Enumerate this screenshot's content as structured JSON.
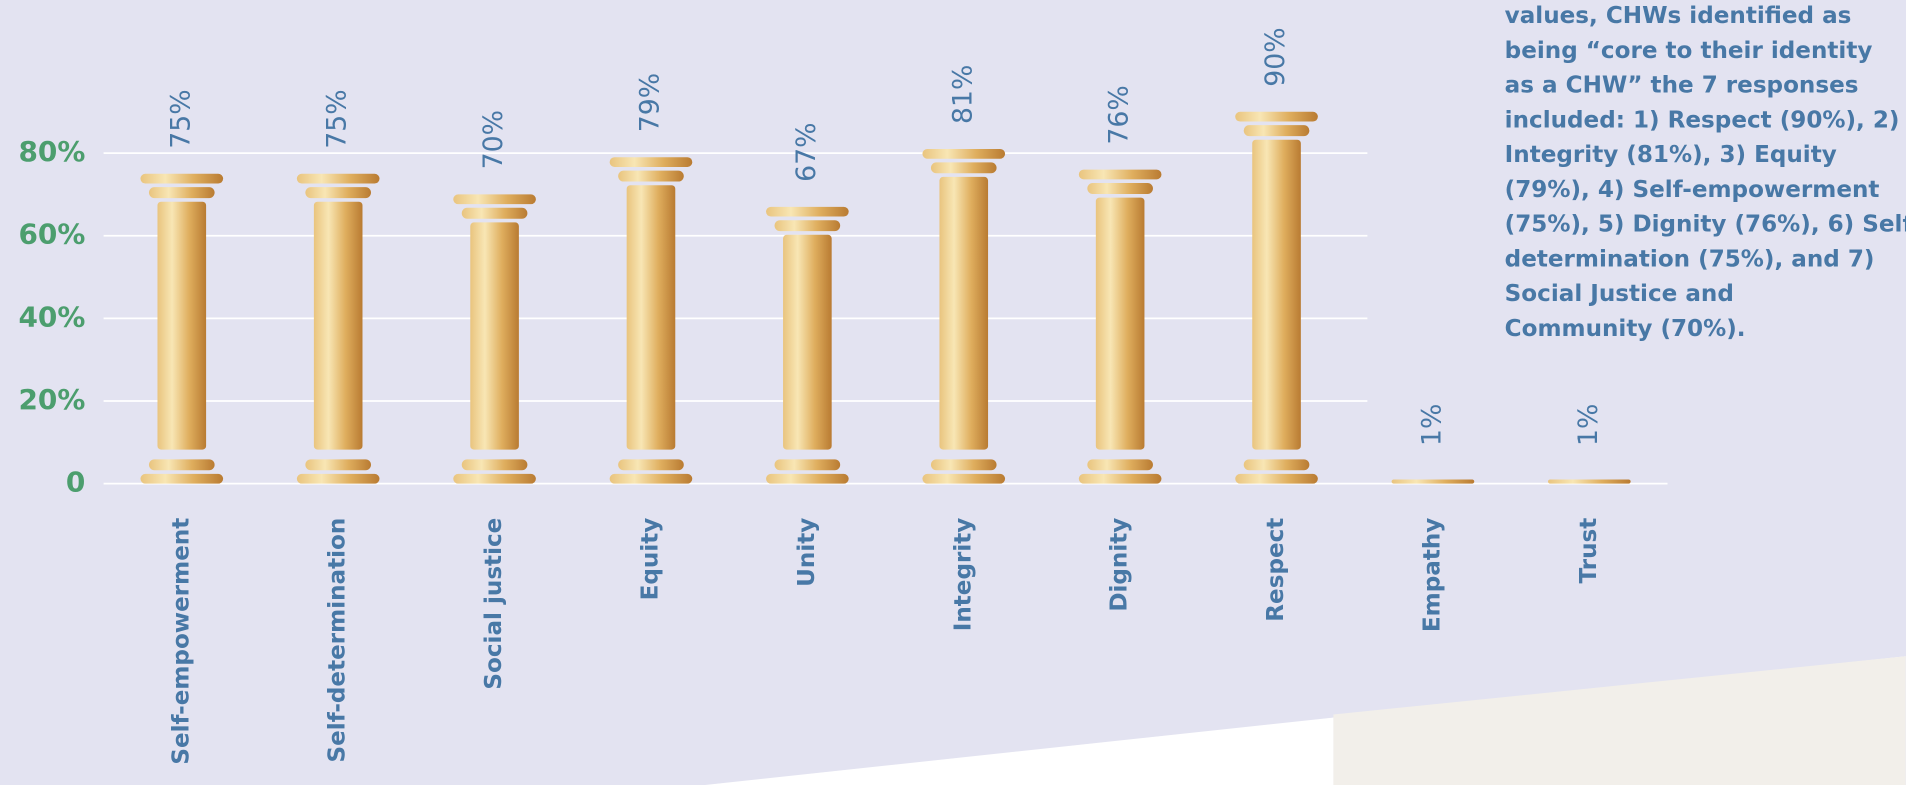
{
  "chart_data": {
    "type": "bar",
    "categories": [
      "Self-empowerment",
      "Self-determination",
      "Social justice",
      "Equity",
      "Unity",
      "Integrity",
      "Dignity",
      "Respect",
      "Empathy",
      "Trust"
    ],
    "values": [
      75,
      75,
      70,
      79,
      67,
      81,
      76,
      90,
      1,
      1
    ],
    "value_labels": [
      "75%",
      "75%",
      "70%",
      "79%",
      "67%",
      "81%",
      "76%",
      "90%",
      "1%",
      "1%"
    ],
    "ylim": [
      0,
      100
    ],
    "yticks": [
      0,
      {
        "value": 20,
        "label": "20%"
      },
      {
        "value": 40,
        "label": "40%"
      },
      {
        "value": 60,
        "label": "60%"
      },
      {
        "value": 80,
        "label": "80%"
      }
    ],
    "grid": true,
    "color": "#e0b566",
    "annotation": [
      "values, CHWs identified as",
      "being “core to their identity",
      "as a CHW” the 7 responses",
      "included: 1) Respect (90%), 2)",
      "Integrity (81%), 3) Equity",
      "(79%), 4) Self-empowerment",
      "(75%), 5) Dignity (76%), 6) Self",
      "determination (75%), and 7)",
      "Social Justice and",
      "Community (70%)."
    ]
  }
}
